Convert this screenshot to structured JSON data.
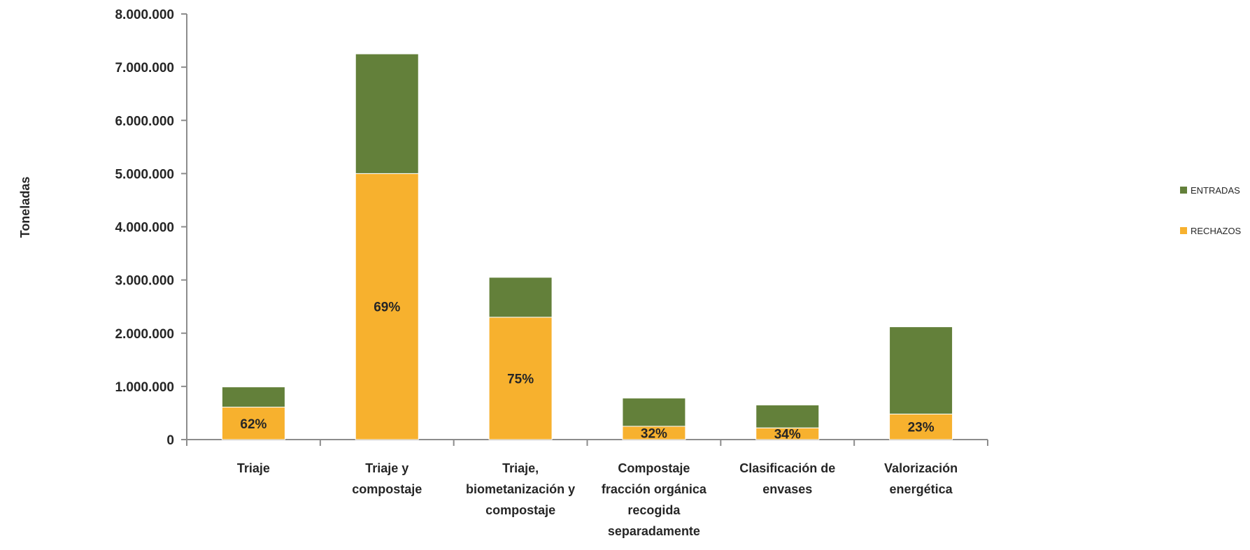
{
  "chart_data": {
    "type": "bar",
    "stacked": true,
    "ylabel": "Toneladas",
    "ylim": [
      0,
      8000000
    ],
    "yticks": [
      "0",
      "1.000.000",
      "2.000.000",
      "3.000.000",
      "4.000.000",
      "5.000.000",
      "6.000.000",
      "7.000.000",
      "8.000.000"
    ],
    "categories": [
      [
        "Triaje"
      ],
      [
        "Triaje y",
        "compostaje"
      ],
      [
        "Triaje,",
        "biometanización y",
        "compostaje"
      ],
      [
        "Compostaje",
        "fracción orgánica",
        "recogida",
        "separadamente"
      ],
      [
        "Clasificación de",
        "envases"
      ],
      [
        "Valorización",
        "energética"
      ]
    ],
    "series": [
      {
        "name": "RECHAZOS",
        "color": "#f7b12e",
        "values": [
          610000,
          5000000,
          2300000,
          250000,
          220000,
          480000
        ]
      },
      {
        "name": "ENTRADAS",
        "color": "#63803a",
        "values": [
          380000,
          2250000,
          750000,
          530000,
          430000,
          1640000
        ]
      }
    ],
    "data_labels": [
      "62%",
      "69%",
      "75%",
      "32%",
      "34%",
      "23%"
    ],
    "grid": false,
    "legend": {
      "position": "right",
      "order": [
        "ENTRADAS",
        "RECHAZOS"
      ]
    }
  }
}
